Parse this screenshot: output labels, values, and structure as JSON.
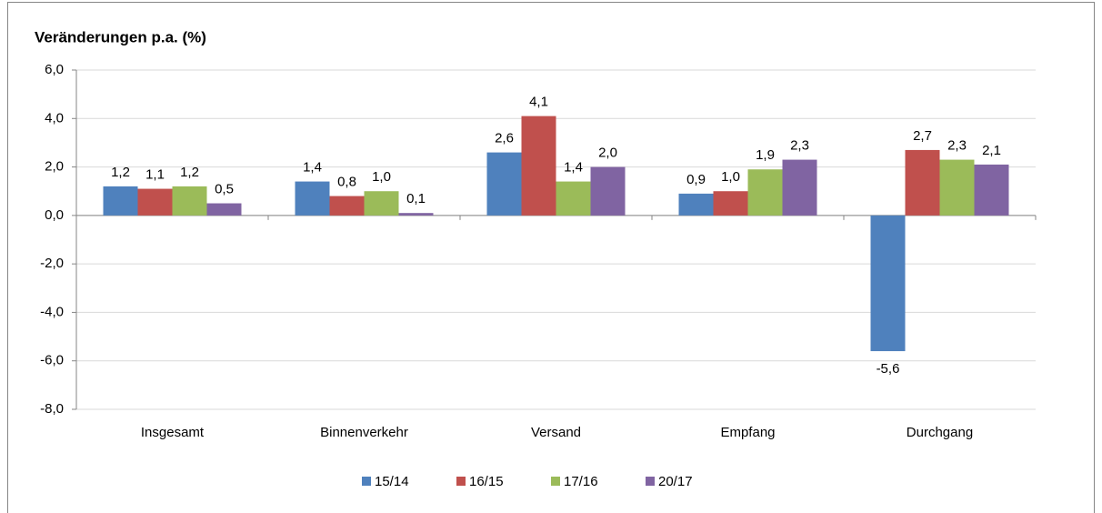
{
  "chart_data": {
    "type": "bar",
    "title": "Veränderungen p.a. (%)",
    "categories": [
      "Insgesamt",
      "Binnenverkehr",
      "Versand",
      "Empfang",
      "Durchgang"
    ],
    "series": [
      {
        "name": "15/14",
        "color": "#4f81bd",
        "values": [
          1.2,
          1.4,
          2.6,
          0.9,
          -5.6
        ],
        "value_labels": [
          "1,2",
          "1,4",
          "2,6",
          "0,9",
          "-5,6"
        ]
      },
      {
        "name": "16/15",
        "color": "#c0504d",
        "values": [
          1.1,
          0.8,
          4.1,
          1.0,
          2.7
        ],
        "value_labels": [
          "1,1",
          "0,8",
          "4,1",
          "1,0",
          "2,7"
        ]
      },
      {
        "name": "17/16",
        "color": "#9bbb59",
        "values": [
          1.2,
          1.0,
          1.4,
          1.9,
          2.3
        ],
        "value_labels": [
          "1,2",
          "1,0",
          "1,4",
          "1,9",
          "2,3"
        ]
      },
      {
        "name": "20/17",
        "color": "#8064a2",
        "values": [
          0.5,
          0.1,
          2.0,
          2.3,
          2.1
        ],
        "value_labels": [
          "0,5",
          "0,1",
          "2,0",
          "2,3",
          "2,1"
        ]
      }
    ],
    "ylim": [
      -8,
      6
    ],
    "yticks": [
      {
        "value": -8,
        "label": "-8,0"
      },
      {
        "value": -6,
        "label": "-6,0"
      },
      {
        "value": -4,
        "label": "-4,0"
      },
      {
        "value": -2,
        "label": "-2,0"
      },
      {
        "value": 0,
        "label": "0,0"
      },
      {
        "value": 2,
        "label": "2,0"
      },
      {
        "value": 4,
        "label": "4,0"
      },
      {
        "value": 6,
        "label": "6,0"
      }
    ],
    "grid": true,
    "legend": "bottom"
  }
}
